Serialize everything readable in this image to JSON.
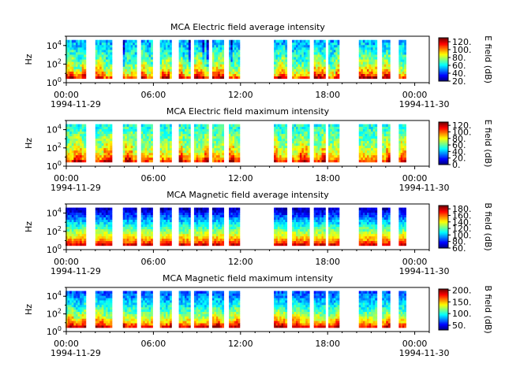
{
  "time_ticks": [
    "00:00",
    "06:00",
    "12:00",
    "18:00",
    "00:00"
  ],
  "date_labels": [
    "1994-11-29",
    "1994-11-30"
  ],
  "y_ticks": [
    {
      "base": "10",
      "exp": "0"
    },
    {
      "base": "10",
      "exp": "2"
    },
    {
      "base": "10",
      "exp": "4"
    }
  ],
  "chart_data": [
    {
      "type": "heatmap",
      "title": "MCA  Electric field average intensity",
      "ylabel": "Hz",
      "yscale": "log",
      "ylim": [
        1,
        100000
      ],
      "xlim": [
        "1994-11-29 00:00",
        "1994-11-30 01:00"
      ],
      "colorbar_label": "E field (dB)",
      "colorbar_ticks": [
        "20.",
        "40.",
        "60.",
        "80.",
        "100.",
        "120."
      ],
      "colorbar_range": [
        20,
        130
      ]
    },
    {
      "type": "heatmap",
      "title": "MCA  Electric field maximum intensity",
      "ylabel": "Hz",
      "yscale": "log",
      "ylim": [
        1,
        100000
      ],
      "xlim": [
        "1994-11-29 00:00",
        "1994-11-30 01:00"
      ],
      "colorbar_label": "E field (dB)",
      "colorbar_ticks": [
        "0.",
        "20.",
        "40.",
        "60.",
        "80.",
        "100.",
        "120."
      ],
      "colorbar_range": [
        0,
        130
      ]
    },
    {
      "type": "heatmap",
      "title": "MCA  Magnetic field average intensity",
      "ylabel": "Hz",
      "yscale": "log",
      "ylim": [
        1,
        100000
      ],
      "xlim": [
        "1994-11-29 00:00",
        "1994-11-30 01:00"
      ],
      "colorbar_label": "B field (dB)",
      "colorbar_ticks": [
        "60.",
        "80.",
        "100.",
        "120.",
        "140.",
        "160.",
        "180."
      ],
      "colorbar_range": [
        60,
        190
      ]
    },
    {
      "type": "heatmap",
      "title": "MCA  Magnetic field maximum intensity",
      "ylabel": "Hz",
      "yscale": "log",
      "ylim": [
        1,
        100000
      ],
      "xlim": [
        "1994-11-29 00:00",
        "1994-11-30 01:00"
      ],
      "colorbar_label": "B field (dB)",
      "colorbar_ticks": [
        "50.",
        "100.",
        "150.",
        "200."
      ],
      "colorbar_range": [
        30,
        205
      ]
    }
  ],
  "data_segments_hours": [
    [
      -0.05,
      1.35
    ],
    [
      2.0,
      3.15
    ],
    [
      3.9,
      4.85
    ],
    [
      5.15,
      5.95
    ],
    [
      6.45,
      7.25
    ],
    [
      7.75,
      8.55
    ],
    [
      8.8,
      9.8
    ],
    [
      10.05,
      10.85
    ],
    [
      11.2,
      11.95
    ],
    [
      14.3,
      15.2
    ],
    [
      15.55,
      16.75
    ],
    [
      17.05,
      17.85
    ],
    [
      18.05,
      18.8
    ],
    [
      20.15,
      21.4
    ],
    [
      21.75,
      22.3
    ],
    [
      22.9,
      23.4
    ]
  ],
  "colors": {
    "axis": "#000000",
    "background": "#ffffff",
    "colormap": "jet"
  }
}
